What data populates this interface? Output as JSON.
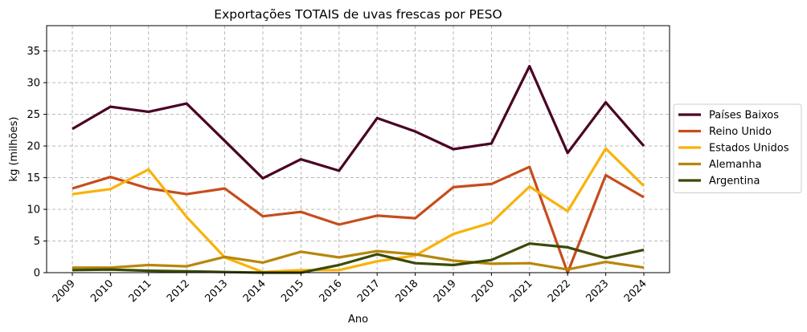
{
  "chart_data": {
    "type": "line",
    "title": "Exportações TOTAIS de uvas frescas por PESO",
    "xlabel": "Ano",
    "ylabel": "kg (milhões)",
    "x": [
      "2009",
      "2010",
      "2011",
      "2012",
      "2013",
      "2014",
      "2015",
      "2016",
      "2017",
      "2018",
      "2019",
      "2020",
      "2021",
      "2022",
      "2023",
      "2024"
    ],
    "ylim": [
      0,
      39
    ],
    "yticks": [
      0,
      5,
      10,
      15,
      20,
      25,
      30,
      35
    ],
    "grid": true,
    "legend_position": "right",
    "series": [
      {
        "name": "Países Baixos",
        "color": "#4a0024",
        "values": [
          22.7,
          26.2,
          25.4,
          26.7,
          20.8,
          14.9,
          17.9,
          16.1,
          24.4,
          22.3,
          19.5,
          20.4,
          32.6,
          18.9,
          26.9,
          20.0
        ]
      },
      {
        "name": "Reino Unido",
        "color": "#c64d1c",
        "values": [
          13.3,
          15.1,
          13.3,
          12.4,
          13.3,
          8.9,
          9.6,
          7.6,
          9.0,
          8.6,
          13.5,
          14.0,
          16.7,
          0.0,
          15.4,
          11.9
        ]
      },
      {
        "name": "Estados Unidos",
        "color": "#f9b208",
        "values": [
          12.4,
          13.2,
          16.3,
          8.8,
          2.4,
          0.1,
          0.4,
          0.4,
          1.8,
          2.7,
          6.1,
          7.9,
          13.6,
          9.7,
          19.6,
          13.7
        ]
      },
      {
        "name": "Alemanha",
        "color": "#b8860b",
        "values": [
          0.8,
          0.8,
          1.2,
          1.0,
          2.5,
          1.6,
          3.3,
          2.4,
          3.4,
          2.9,
          1.9,
          1.4,
          1.5,
          0.5,
          1.7,
          0.8
        ]
      },
      {
        "name": "Argentina",
        "color": "#3a4a07",
        "values": [
          0.4,
          0.5,
          0.3,
          0.2,
          0.1,
          0.0,
          0.0,
          1.2,
          2.9,
          1.5,
          1.2,
          2.0,
          4.6,
          4.0,
          2.3,
          3.6
        ]
      }
    ]
  }
}
